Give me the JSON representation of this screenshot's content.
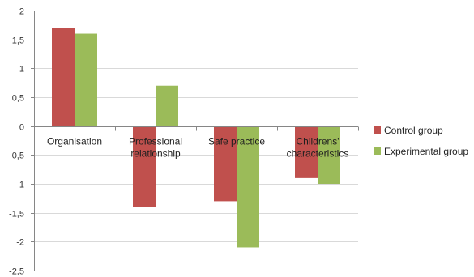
{
  "chart_data": {
    "type": "bar",
    "categories": [
      [
        "Organisation"
      ],
      [
        "Professional",
        "relationship"
      ],
      [
        "Safe practice"
      ],
      [
        "Childrens'",
        "characteristics"
      ]
    ],
    "series": [
      {
        "name": "Control group",
        "color": "#c0504d",
        "values": [
          1.7,
          -1.4,
          -1.3,
          -0.9
        ]
      },
      {
        "name": "Experimental group",
        "color": "#9bbb59",
        "values": [
          1.6,
          0.7,
          -2.1,
          -1.0
        ]
      }
    ],
    "ylim": [
      -2.5,
      2
    ],
    "yticks": [
      "2",
      "1,5",
      "1",
      "0,5",
      "0",
      "-0,5",
      "-1",
      "-1,5",
      "-2",
      "-2,5"
    ],
    "grid": true,
    "legend_position": "right",
    "title": "",
    "xlabel": "",
    "ylabel": ""
  }
}
